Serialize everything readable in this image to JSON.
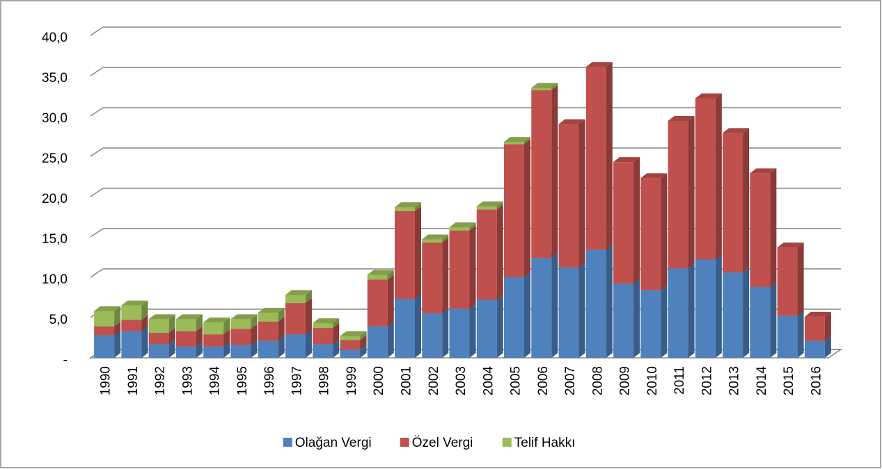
{
  "chart_data": {
    "type": "bar3d_stacked",
    "categories": [
      "1990",
      "1991",
      "1992",
      "1993",
      "1994",
      "1995",
      "1996",
      "1997",
      "1998",
      "1999",
      "2000",
      "2001",
      "2002",
      "2003",
      "2004",
      "2005",
      "2006",
      "2007",
      "2008",
      "2009",
      "2010",
      "2011",
      "2012",
      "2013",
      "2014",
      "2015",
      "2016"
    ],
    "series": [
      {
        "name": "Olağan Vergi",
        "color": "#4f81bd",
        "values": [
          2.8,
          3.3,
          1.7,
          1.4,
          1.4,
          1.6,
          2.1,
          2.9,
          1.7,
          1.0,
          3.9,
          7.3,
          5.5,
          6.1,
          7.2,
          10.0,
          12.4,
          11.2,
          13.4,
          9.2,
          8.4,
          11.1,
          12.2,
          10.6,
          8.8,
          5.2,
          2.1
        ]
      },
      {
        "name": "Özel Vergi",
        "color": "#c0504d",
        "values": [
          1.1,
          1.4,
          1.4,
          1.9,
          1.5,
          2.0,
          2.4,
          3.9,
          2.0,
          1.2,
          5.8,
          10.9,
          8.8,
          9.7,
          11.2,
          16.5,
          20.8,
          17.8,
          22.7,
          15.1,
          13.9,
          18.3,
          20.0,
          17.3,
          14.1,
          8.5,
          3.0
        ]
      },
      {
        "name": "Telif Hakkı",
        "color": "#9bbb59",
        "values": [
          1.9,
          1.8,
          1.7,
          1.5,
          1.5,
          1.2,
          1.1,
          1.0,
          0.6,
          0.5,
          0.6,
          0.5,
          0.4,
          0.4,
          0.4,
          0.3,
          0.3,
          0,
          0,
          0,
          0,
          0,
          0,
          0,
          0,
          0,
          0
        ]
      }
    ],
    "stacked": true,
    "ylim": [
      0,
      40
    ],
    "yticks": [
      {
        "value": 0,
        "label": "-"
      },
      {
        "value": 5,
        "label": "5,0"
      },
      {
        "value": 10,
        "label": "10,0"
      },
      {
        "value": 15,
        "label": "15,0"
      },
      {
        "value": 20,
        "label": "20,0"
      },
      {
        "value": 25,
        "label": "25,0"
      },
      {
        "value": 30,
        "label": "30,0"
      },
      {
        "value": 35,
        "label": "35,0"
      },
      {
        "value": 40,
        "label": "40,0"
      }
    ],
    "grid": true,
    "legend": "bottom"
  }
}
